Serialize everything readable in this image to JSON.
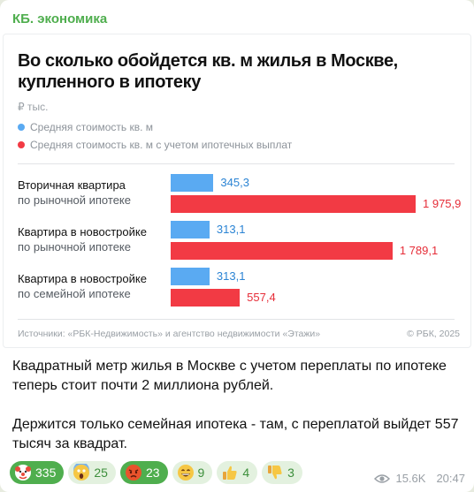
{
  "channel": {
    "name": "КБ. экономика"
  },
  "chart_card": {
    "title": "Во сколько обойдется кв. м жилья в Москве, купленного в ипотеку",
    "unit": "₽ тыс.",
    "legend": [
      {
        "label": "Средняя стоимость кв. м",
        "color": "#5aaaf2"
      },
      {
        "label": "Средняя стоимость кв. м с учетом ипотечных выплат",
        "color": "#f23a44"
      }
    ],
    "source": "Источники: «РБК-Недвижимость» и агентство недвижимости «Этажи»",
    "copyright": "© РБК, 2025"
  },
  "chart_data": {
    "type": "bar",
    "orientation": "horizontal",
    "categories": [
      [
        "Вторичная квартира",
        "по рыночной ипотеке"
      ],
      [
        "Квартира в новостройке",
        "по рыночной ипотеке"
      ],
      [
        "Квартира в новостройке",
        "по семейной ипотеке"
      ]
    ],
    "series": [
      {
        "name": "Средняя стоимость кв. м",
        "values": [
          345.3,
          313.1,
          313.1
        ],
        "labels": [
          "345,3",
          "313,1",
          "313,1"
        ],
        "color": "#5aaaf2"
      },
      {
        "name": "Средняя стоимость кв. м с учетом ипотечных выплат",
        "values": [
          1975.9,
          1789.1,
          557.4
        ],
        "labels": [
          "1 975,9",
          "1 789,1",
          "557,4"
        ],
        "color": "#f23a44"
      }
    ],
    "title": "Во сколько обойдется кв. м жилья в Москве, купленного в ипотеку",
    "ylabel": "₽ тыс.",
    "xlim": [
      0,
      1975.9
    ],
    "legend_position": "top-left",
    "grid": false
  },
  "message": {
    "paragraphs": [
      "Квадратный метр жилья в Москве с учетом переплаты по ипотеке теперь стоит почти 2 миллиона рублей.",
      "Держится только семейная ипотека - там, с переплатой выйдет 557 тысяч за квадрат."
    ]
  },
  "reactions": [
    {
      "icon": "clown-face-icon",
      "count": "335",
      "active": true
    },
    {
      "icon": "screaming-face-icon",
      "count": "25",
      "active": false
    },
    {
      "icon": "angry-face-icon",
      "count": "23",
      "active": true
    },
    {
      "icon": "grinning-face-icon",
      "count": "9",
      "active": false
    },
    {
      "icon": "thumbs-up-icon",
      "count": "4",
      "active": false
    },
    {
      "icon": "thumbs-down-icon",
      "count": "3",
      "active": false
    }
  ],
  "meta": {
    "views": "15.6K",
    "time": "20:47"
  }
}
